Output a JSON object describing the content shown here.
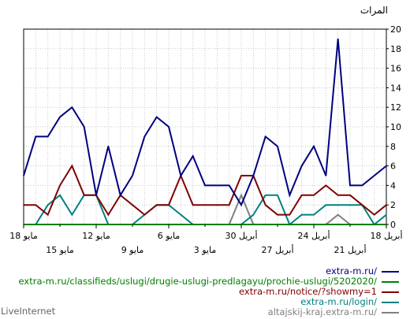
{
  "chart_data": {
    "type": "line",
    "ylabel": "المرات",
    "ylim": [
      0,
      20
    ],
    "yticks": [
      0,
      2,
      4,
      6,
      8,
      10,
      12,
      14,
      16,
      18,
      20
    ],
    "grid": true,
    "legend_position": "bottom-right",
    "x": [
      "18 مايو",
      "17",
      "16",
      "15 مايو",
      "14",
      "13",
      "12 مايو",
      "11",
      "10",
      "9 مايو",
      "8",
      "7",
      "6 مايو",
      "5",
      "4",
      "3 مايو",
      "2",
      "1",
      "30 أبريل",
      "29",
      "28",
      "27 أبريل",
      "26",
      "25",
      "24 أبريل",
      "23",
      "22",
      "21 أبريل",
      "20",
      "19",
      "18 أبريل"
    ],
    "x_tick_labels_row1": [
      "18 مايو",
      "12 مايو",
      "6 مايو",
      "30 أبريل",
      "24 أبريل",
      "18 أبريل"
    ],
    "x_tick_labels_row2": [
      "15 مايو",
      "9 مايو",
      "3 مايو",
      "27 أبريل",
      "21 أبريل"
    ],
    "series": [
      {
        "name": "extra-m.ru/",
        "color": "#000080",
        "values": [
          5,
          9,
          9,
          11,
          12,
          10,
          3,
          8,
          3,
          5,
          9,
          11,
          10,
          5,
          7,
          4,
          4,
          4,
          2,
          5,
          9,
          8,
          3,
          6,
          8,
          5,
          19,
          4,
          4,
          5,
          6
        ]
      },
      {
        "name": "extra-m.ru/classifieds/uslugi/drugie-uslugi-predlagayu/prochie-uslugi/5202020/",
        "color": "#008000",
        "values": [
          0,
          0,
          0,
          0,
          0,
          0,
          0,
          0,
          0,
          0,
          0,
          0,
          0,
          0,
          0,
          0,
          0,
          0,
          0,
          0,
          0,
          0,
          0,
          0,
          0,
          0,
          0,
          0,
          0,
          0,
          0
        ]
      },
      {
        "name": "extra-m.ru/notice/?showmy=1",
        "color": "#800000",
        "values": [
          2,
          2,
          1,
          4,
          6,
          3,
          3,
          1,
          3,
          2,
          1,
          2,
          2,
          5,
          2,
          2,
          2,
          2,
          5,
          5,
          2,
          1,
          1,
          3,
          3,
          4,
          3,
          3,
          2,
          1,
          2
        ]
      },
      {
        "name": "extra-m.ru/login/",
        "color": "#008080",
        "values": [
          0,
          0,
          2,
          3,
          1,
          3,
          3,
          0,
          0,
          0,
          1,
          2,
          2,
          1,
          0,
          0,
          0,
          0,
          0,
          1,
          3,
          3,
          0,
          1,
          1,
          2,
          2,
          2,
          2,
          0,
          1
        ]
      },
      {
        "name": "altajskij-kraj.extra-m.ru/",
        "color": "#808080",
        "values": [
          0,
          0,
          0,
          0,
          0,
          0,
          0,
          0,
          0,
          0,
          0,
          0,
          0,
          0,
          0,
          0,
          0,
          0,
          3,
          0,
          0,
          0,
          0,
          0,
          0,
          0,
          1,
          0,
          0,
          0,
          0
        ]
      }
    ]
  },
  "footer": {
    "brand": "LiveInternet"
  }
}
